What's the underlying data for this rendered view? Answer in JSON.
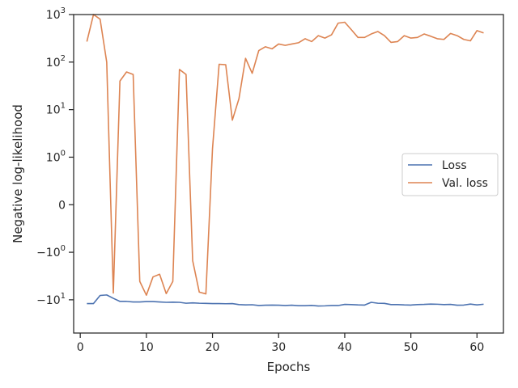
{
  "chart_data": {
    "type": "line",
    "title": "",
    "xlabel": "Epochs",
    "ylabel": "Negative log-likelihood",
    "yscale": "symlog",
    "symlog_linthresh": 1,
    "xlim": [
      -1,
      64
    ],
    "ylim": [
      -50,
      1000
    ],
    "grid": false,
    "legend_position": "center-right",
    "x_ticks": [
      0,
      10,
      20,
      30,
      40,
      50,
      60
    ],
    "x_tick_labels": [
      "0",
      "10",
      "20",
      "30",
      "40",
      "50",
      "60"
    ],
    "y_ticks": [
      {
        "value": -10,
        "label": "−10",
        "sup": "1"
      },
      {
        "value": -1,
        "label": "−10",
        "sup": "0"
      },
      {
        "value": 0,
        "label": "0",
        "sup": ""
      },
      {
        "value": 1,
        "label": "10",
        "sup": "0"
      },
      {
        "value": 10,
        "label": "10",
        "sup": "1"
      },
      {
        "value": 100,
        "label": "10",
        "sup": "2"
      },
      {
        "value": 1000,
        "label": "10",
        "sup": "3"
      }
    ],
    "x": [
      1,
      2,
      3,
      4,
      5,
      6,
      7,
      8,
      9,
      10,
      11,
      12,
      13,
      14,
      15,
      16,
      17,
      18,
      19,
      20,
      21,
      22,
      23,
      24,
      25,
      26,
      27,
      28,
      29,
      30,
      31,
      32,
      33,
      34,
      35,
      36,
      37,
      38,
      39,
      40,
      41,
      42,
      43,
      44,
      45,
      46,
      47,
      48,
      49,
      50,
      51,
      52,
      53,
      54,
      55,
      56,
      57,
      58,
      59,
      60,
      61
    ],
    "series": [
      {
        "name": "Loss",
        "color": "#4c72b0",
        "values": [
          -12,
          -12,
          -8.1,
          -7.9,
          -9.3,
          -10.8,
          -10.8,
          -11.1,
          -11.1,
          -10.9,
          -10.9,
          -11.1,
          -11.3,
          -11.2,
          -11.3,
          -11.8,
          -11.6,
          -11.8,
          -11.9,
          -12,
          -12,
          -12.1,
          -12,
          -12.6,
          -12.8,
          -12.7,
          -13.2,
          -13,
          -12.9,
          -13,
          -13.2,
          -13,
          -13.3,
          -13.3,
          -13.1,
          -13.5,
          -13.4,
          -13.2,
          -13.2,
          -12.5,
          -12.6,
          -12.8,
          -12.9,
          -11.3,
          -11.8,
          -11.9,
          -12.6,
          -12.6,
          -12.8,
          -12.9,
          -12.6,
          -12.5,
          -12.3,
          -12.4,
          -12.6,
          -12.5,
          -13,
          -12.9,
          -12.3,
          -12.8,
          -12.4
        ]
      },
      {
        "name": "Val. loss",
        "color": "#dd8452",
        "values": [
          270,
          1000,
          800,
          100,
          -7.2,
          40,
          62,
          55,
          -4.1,
          -8,
          -3.3,
          -2.9,
          -7.4,
          -4.1,
          70,
          55,
          -1.5,
          -6.9,
          -7.5,
          1.5,
          90,
          88,
          6,
          17,
          120,
          58,
          175,
          210,
          190,
          240,
          225,
          240,
          255,
          310,
          270,
          360,
          320,
          375,
          660,
          690,
          480,
          330,
          330,
          390,
          440,
          360,
          260,
          270,
          360,
          320,
          330,
          390,
          350,
          310,
          300,
          400,
          360,
          300,
          280,
          460,
          410
        ]
      }
    ]
  }
}
